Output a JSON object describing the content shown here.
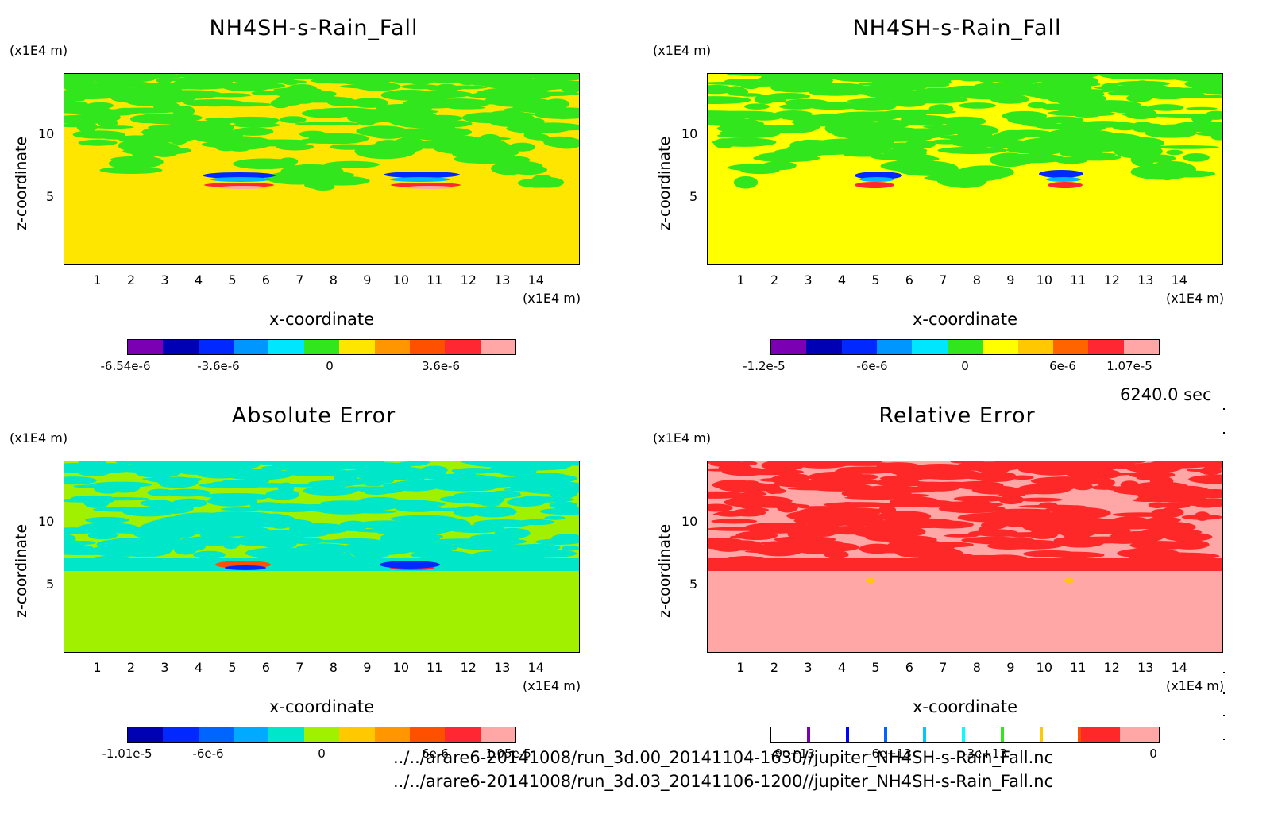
{
  "time_label": "6240.0 sec",
  "footer": {
    "line1": "../../arare6-20141008/run_3d.00_20141104-1630//jupiter_NH4SH-s-Rain_Fall.nc",
    "line2": "../../arare6-20141008/run_3d.03_20141106-1200//jupiter_NH4SH-s-Rain_Fall.nc"
  },
  "chart_data": [
    {
      "type": "heatmap",
      "title": "NH4SH-s-Rain_Fall",
      "xlabel": "x-coordinate",
      "ylabel": "z-coordinate",
      "x_unit": "(x1E4 m)",
      "y_unit": "(x1E4 m)",
      "x_ticks": [
        "1",
        "2",
        "3",
        "4",
        "5",
        "6",
        "7",
        "8",
        "9",
        "10",
        "11",
        "12",
        "13",
        "14"
      ],
      "y_ticks": [
        "5",
        "10"
      ],
      "colorbar_labels": [
        "-6.54e-6",
        "-3.6e-6",
        "0",
        "3.6e-6"
      ],
      "colors": [
        "#7b00b4",
        "#0000b4",
        "#0028ff",
        "#0096ff",
        "#00e6ff",
        "#32e61e",
        "#ffe600",
        "#ff9600",
        "#ff5000",
        "#ff2832",
        "#ffa6a6"
      ]
    },
    {
      "type": "heatmap",
      "title": "NH4SH-s-Rain_Fall",
      "xlabel": "x-coordinate",
      "ylabel": "z-coordinate",
      "x_unit": "(x1E4 m)",
      "y_unit": "(x1E4 m)",
      "x_ticks": [
        "1",
        "2",
        "3",
        "4",
        "5",
        "6",
        "7",
        "8",
        "9",
        "10",
        "11",
        "12",
        "13",
        "14"
      ],
      "y_ticks": [
        "5",
        "10"
      ],
      "colorbar_labels": [
        "-1.2e-5",
        "-6e-6",
        "0",
        "6e-6",
        "1.07e-5"
      ],
      "colors": [
        "#7b00b4",
        "#0000b4",
        "#0028ff",
        "#0096ff",
        "#00e6ff",
        "#32e61e",
        "#ffff00",
        "#ffc800",
        "#ff6400",
        "#ff2832",
        "#ffa6a6"
      ]
    },
    {
      "type": "heatmap",
      "title": "Absolute Error",
      "xlabel": "x-coordinate",
      "ylabel": "z-coordinate",
      "x_unit": "(x1E4 m)",
      "y_unit": "(x1E4 m)",
      "x_ticks": [
        "1",
        "2",
        "3",
        "4",
        "5",
        "6",
        "7",
        "8",
        "9",
        "10",
        "11",
        "12",
        "13",
        "14"
      ],
      "y_ticks": [
        "5",
        "10"
      ],
      "colorbar_labels": [
        "-1.01e-5",
        "-6e-6",
        "0",
        "6e-6",
        "1.05e-5"
      ],
      "colors": [
        "#0000b4",
        "#0028ff",
        "#0064ff",
        "#00aaff",
        "#00e6c8",
        "#a0f000",
        "#ffc800",
        "#ff9600",
        "#ff5000",
        "#ff2832",
        "#ffa6a6"
      ]
    },
    {
      "type": "heatmap",
      "title": "Relative Error",
      "xlabel": "x-coordinate",
      "ylabel": "z-coordinate",
      "x_unit": "(x1E4 m)",
      "y_unit": "(x1E4 m)",
      "x_ticks": [
        "1",
        "2",
        "3",
        "4",
        "5",
        "6",
        "7",
        "8",
        "9",
        "10",
        "11",
        "12",
        "13",
        "14"
      ],
      "y_ticks": [
        "5",
        "10"
      ],
      "colorbar_labels": [
        "-9e+13",
        "-6e+13",
        "-3e+13",
        "0"
      ],
      "colors": [
        "#7b00b4",
        "#0000ff",
        "#0064ff",
        "#00c8ff",
        "#00ffff",
        "#32e61e",
        "#ffc800",
        "#ff5000",
        "#ff2828",
        "#ffa6a6"
      ]
    }
  ]
}
